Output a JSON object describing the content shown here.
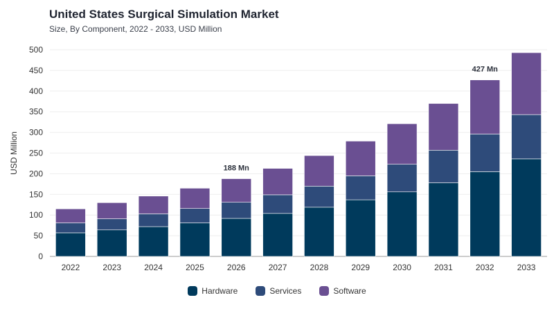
{
  "chart_data": {
    "type": "bar",
    "stacked": true,
    "title": "United States Surgical Simulation Market",
    "subtitle": "Size, By Component, 2022 - 2033, USD Million",
    "ylabel": "USD Million",
    "xlabel": "",
    "ylim": [
      0,
      500
    ],
    "yticks": [
      0,
      50,
      100,
      150,
      200,
      250,
      300,
      350,
      400,
      450,
      500
    ],
    "grid": true,
    "legend_position": "bottom-center",
    "categories": [
      "2022",
      "2023",
      "2024",
      "2025",
      "2026",
      "2027",
      "2028",
      "2029",
      "2030",
      "2031",
      "2032",
      "2033"
    ],
    "series": [
      {
        "name": "Hardware",
        "color": "#003a5c",
        "values": [
          57,
          64,
          72,
          81,
          92,
          104,
          119,
          137,
          156,
          178,
          205,
          236
        ]
      },
      {
        "name": "Services",
        "color": "#2e4b7a",
        "values": [
          24,
          27,
          31,
          35,
          39,
          45,
          51,
          58,
          67,
          79,
          91,
          107
        ]
      },
      {
        "name": "Software",
        "color": "#6a4f92",
        "values": [
          34,
          39,
          43,
          49,
          57,
          64,
          74,
          84,
          98,
          113,
          131,
          150
        ]
      }
    ],
    "annotations": [
      {
        "category": "2026",
        "text": "188 Mn"
      },
      {
        "category": "2032",
        "text": "427 Mn"
      }
    ]
  }
}
